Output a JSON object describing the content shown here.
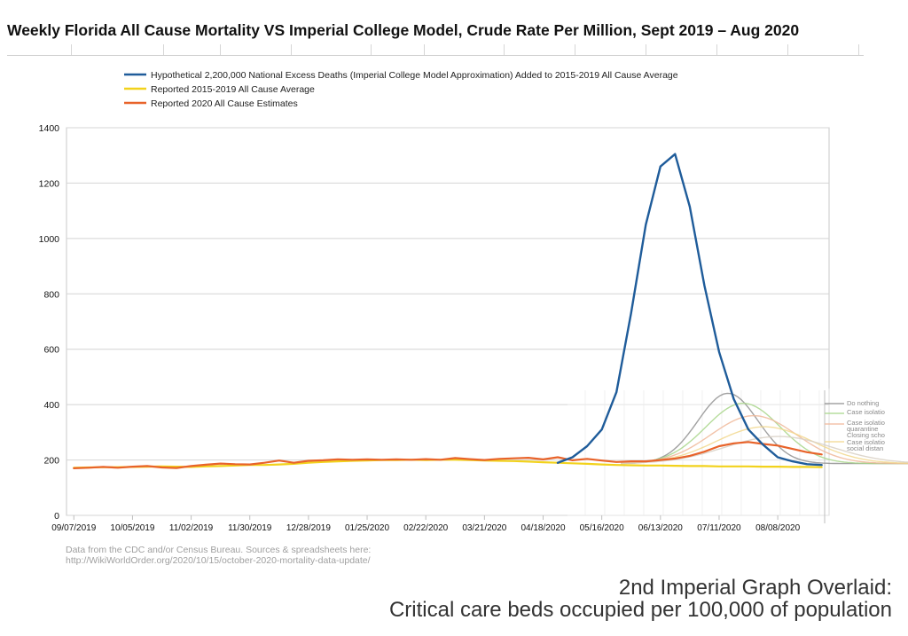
{
  "chart_data": {
    "type": "line",
    "title": "Weekly Florida All Cause Mortality VS Imperial College Model, Crude Rate Per Million, Sept 2019 – Aug 2020",
    "legend_position": "top",
    "ylim": [
      0,
      1400
    ],
    "yticks": [
      0,
      200,
      400,
      600,
      800,
      1000,
      1200,
      1400
    ],
    "grid": true,
    "x_tick_labels": [
      "09/07/2019",
      "10/05/2019",
      "11/02/2019",
      "11/30/2019",
      "12/28/2019",
      "01/25/2020",
      "02/22/2020",
      "03/21/2020",
      "04/18/2020",
      "05/16/2020",
      "06/13/2020",
      "07/11/2020",
      "08/08/2020"
    ],
    "x_weeks": [
      "09/07/2019",
      "09/14/2019",
      "09/21/2019",
      "09/28/2019",
      "10/05/2019",
      "10/12/2019",
      "10/19/2019",
      "10/26/2019",
      "11/02/2019",
      "11/09/2019",
      "11/16/2019",
      "11/23/2019",
      "11/30/2019",
      "12/07/2019",
      "12/14/2019",
      "12/21/2019",
      "12/28/2019",
      "01/04/2020",
      "01/11/2020",
      "01/18/2020",
      "01/25/2020",
      "02/01/2020",
      "02/08/2020",
      "02/15/2020",
      "02/22/2020",
      "02/29/2020",
      "03/07/2020",
      "03/14/2020",
      "03/21/2020",
      "03/28/2020",
      "04/04/2020",
      "04/11/2020",
      "04/18/2020",
      "04/25/2020",
      "05/02/2020",
      "05/09/2020",
      "05/16/2020",
      "05/23/2020",
      "05/30/2020",
      "06/06/2020",
      "06/13/2020",
      "06/20/2020",
      "06/27/2020",
      "07/04/2020",
      "07/11/2020",
      "07/18/2020",
      "07/25/2020",
      "08/01/2020",
      "08/08/2020",
      "08/15/2020",
      "08/22/2020",
      "08/29/2020"
    ],
    "series": [
      {
        "name": "Hypothetical 2,200,000 National Excess Deaths (Imperial College Model Approximation) Added to 2015-2019 All Cause Average",
        "color": "#1f5c9a",
        "values": [
          null,
          null,
          null,
          null,
          null,
          null,
          null,
          null,
          null,
          null,
          null,
          null,
          null,
          null,
          null,
          null,
          null,
          null,
          null,
          null,
          null,
          null,
          null,
          null,
          null,
          null,
          null,
          null,
          null,
          null,
          null,
          null,
          null,
          190,
          210,
          250,
          310,
          445,
          730,
          1050,
          1260,
          1305,
          1115,
          830,
          590,
          420,
          310,
          255,
          210,
          195,
          185,
          182
        ]
      },
      {
        "name": "Reported 2015-2019 All Cause Average",
        "color": "#f2d21c",
        "values": [
          172,
          173,
          174,
          174,
          175,
          176,
          177,
          176,
          175,
          177,
          178,
          180,
          182,
          182,
          184,
          186,
          190,
          193,
          195,
          197,
          198,
          200,
          200,
          201,
          200,
          201,
          201,
          200,
          198,
          197,
          196,
          194,
          192,
          190,
          188,
          186,
          184,
          182,
          181,
          180,
          180,
          179,
          178,
          178,
          177,
          177,
          177,
          176,
          176,
          175,
          175,
          174
        ]
      },
      {
        "name": "Reported 2020 All Cause Estimates",
        "color": "#e8632a",
        "values": [
          170,
          172,
          175,
          172,
          176,
          178,
          173,
          171,
          178,
          183,
          187,
          185,
          184,
          190,
          198,
          190,
          197,
          199,
          202,
          201,
          202,
          201,
          202,
          201,
          203,
          201,
          207,
          203,
          200,
          204,
          206,
          208,
          202,
          210,
          199,
          204,
          198,
          193,
          195,
          195,
          200,
          205,
          215,
          230,
          250,
          260,
          265,
          258,
          252,
          240,
          228,
          220
        ]
      }
    ]
  },
  "source_note": {
    "line1": "Data from the CDC and/or Census Bureau. Sources & spreadsheets here:",
    "line2": "http://WikiWorldOrder.org/2020/10/15/october-2020-mortality-data-update/"
  },
  "overlay": {
    "caption_line1": "2nd Imperial Graph Overlaid:",
    "caption_line2": "Critical care beds occupied per 100,000 of population",
    "legend_labels": [
      "Do nothing",
      "Case isolatio",
      "Case isolatio",
      "quarantine",
      "Closing scho",
      "Case isolatio",
      "social distan"
    ],
    "curve_colors": [
      "#909090",
      "#a8d68a",
      "#f0b89a",
      "#f2d88e",
      "#d8d0c4"
    ]
  }
}
